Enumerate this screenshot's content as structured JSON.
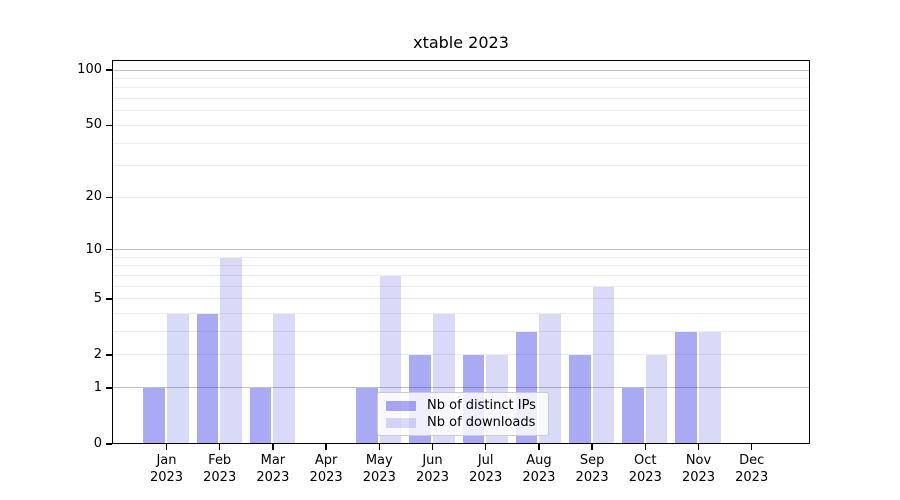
{
  "figure": {
    "title": "xtable 2023"
  },
  "chart_data": {
    "type": "bar",
    "title": "xtable 2023",
    "categories": [
      "Jan 2023",
      "Feb 2023",
      "Mar 2023",
      "Apr 2023",
      "May 2023",
      "Jun 2023",
      "Jul 2023",
      "Aug 2023",
      "Sep 2023",
      "Oct 2023",
      "Nov 2023",
      "Dec 2023"
    ],
    "x": {
      "months": [
        "Jan",
        "Feb",
        "Mar",
        "Apr",
        "May",
        "Jun",
        "Jul",
        "Aug",
        "Sep",
        "Oct",
        "Nov",
        "Dec"
      ],
      "year": "2023"
    },
    "series": [
      {
        "name": "Nb of distinct IPs",
        "values": [
          1,
          4,
          1,
          0,
          1,
          2,
          2,
          3,
          2,
          1,
          3,
          0
        ],
        "color": "rgba(40,40,228,0.40)"
      },
      {
        "name": "Nb of downloads",
        "values": [
          4,
          9,
          4,
          0,
          7,
          4,
          2,
          4,
          6,
          2,
          3,
          0
        ],
        "color": "rgba(45,45,215,0.18)"
      }
    ],
    "xlabel": "",
    "ylabel": "",
    "y_axis": {
      "scale": "log1p",
      "tick_labels": [
        0,
        1,
        2,
        5,
        10,
        20,
        50,
        100
      ],
      "major_gridlines": [
        1,
        10,
        100
      ],
      "minor_gridlines": [
        2,
        3,
        4,
        5,
        6,
        7,
        8,
        9,
        20,
        30,
        40,
        50,
        60,
        70,
        80,
        90
      ],
      "range_max": 113
    },
    "legend": {
      "position": "inside-bottom-center",
      "entries": [
        "Nb of distinct IPs",
        "Nb of downloads"
      ]
    },
    "grid": true
  },
  "style": {
    "bar_distinct_ips": "rgba(40,40,228,0.40)",
    "bar_downloads": "rgba(45,45,215,0.18)",
    "major_grid_color": "#bdbdbd",
    "minor_grid_color": "#ececec",
    "spine_color": "#000000",
    "text_color": "#000000",
    "legend_bg": "rgba(255,255,255,0.8)",
    "legend_border": "#cccccc"
  }
}
